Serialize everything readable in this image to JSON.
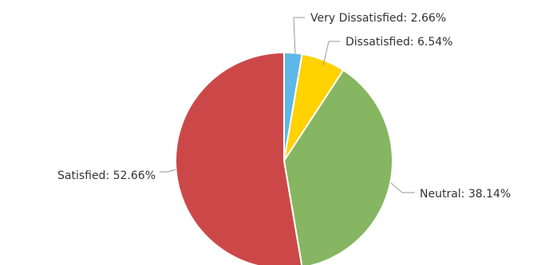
{
  "chart_data": {
    "type": "pie",
    "title": "",
    "legend": "none",
    "slices": [
      {
        "name": "Very Dissatisfied",
        "value": 2.66,
        "label": "Very Dissatisfied: 2.66%",
        "color": "#5DB8E8"
      },
      {
        "name": "Dissatisfied",
        "value": 6.54,
        "label": "Dissatisfied: 6.54%",
        "color": "#FFD200"
      },
      {
        "name": "Neutral",
        "value": 38.14,
        "label": "Neutral: 38.14%",
        "color": "#86B661"
      },
      {
        "name": "Satisfied",
        "value": 52.66,
        "label": "Satisfied: 52.66%",
        "color": "#CC4848"
      }
    ]
  }
}
